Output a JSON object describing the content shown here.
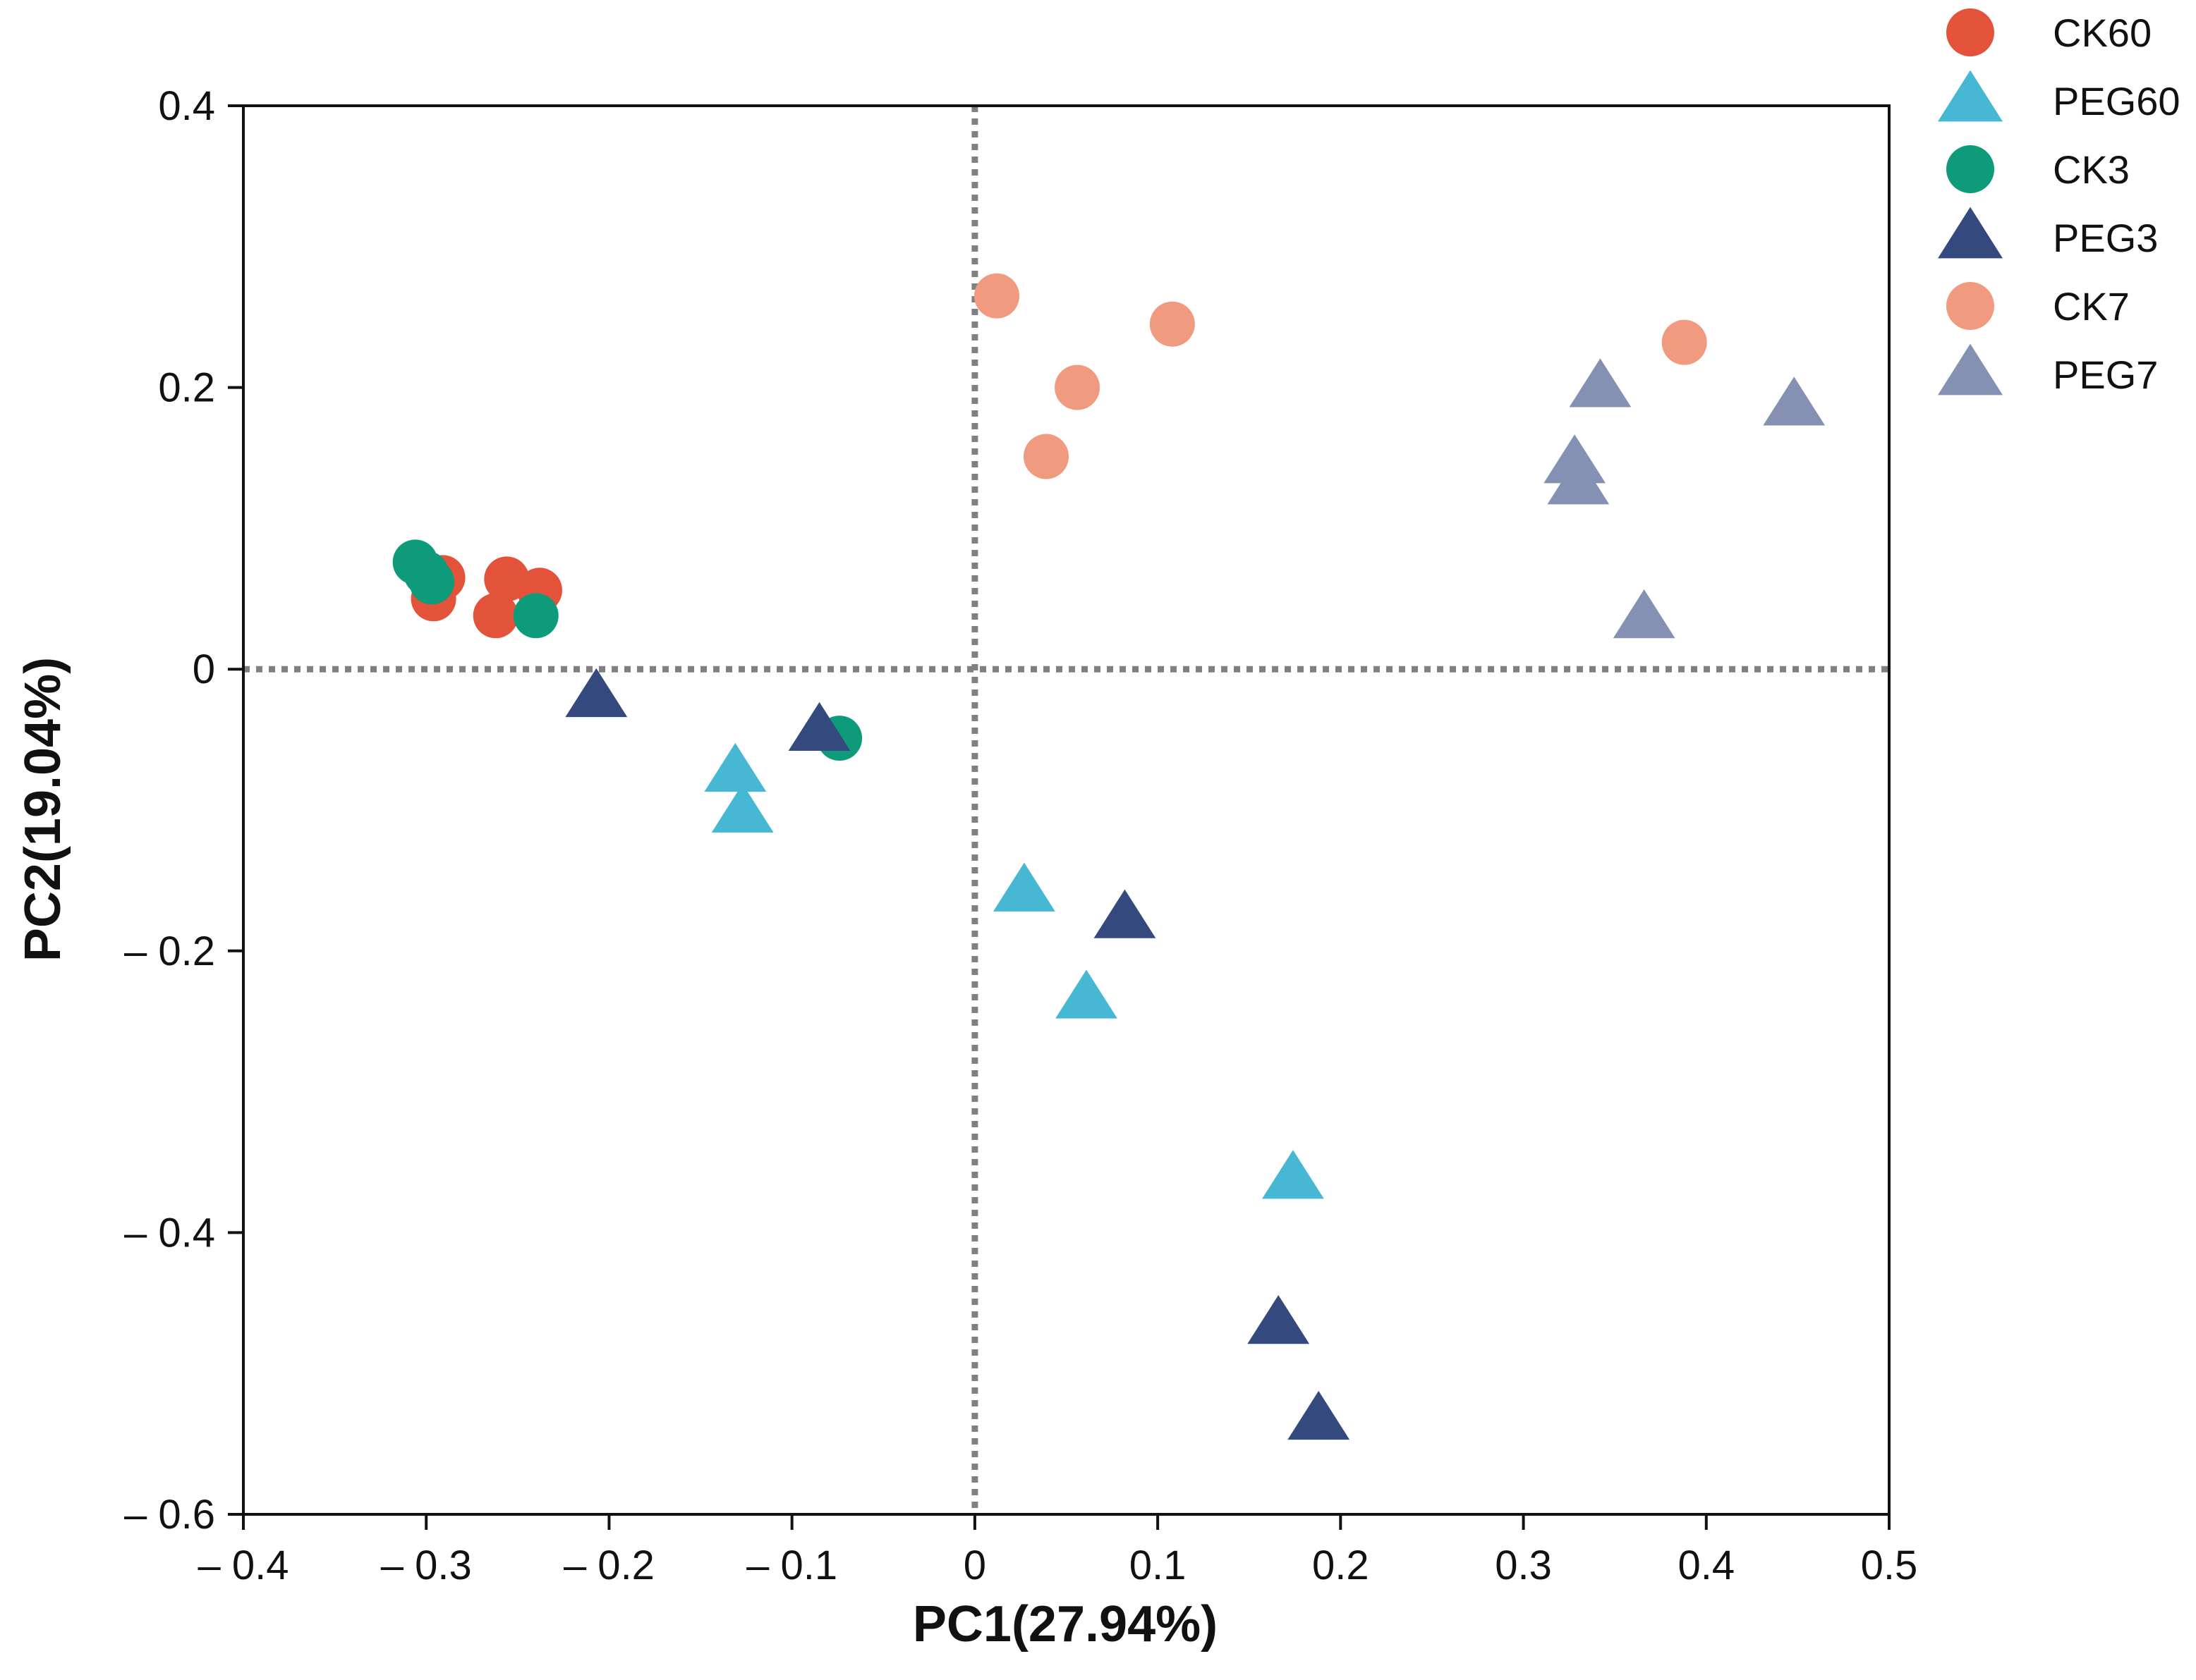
{
  "chart_data": {
    "type": "scatter",
    "title": "",
    "xlabel": "PC1(27.94%)",
    "ylabel": "PC2(19.04%)",
    "xlim": [
      -0.4,
      0.5
    ],
    "ylim": [
      -0.6,
      0.4
    ],
    "xticks": [
      -0.4,
      -0.3,
      -0.2,
      -0.1,
      0,
      0.1,
      0.2,
      0.3,
      0.4,
      0.5
    ],
    "xtick_labels": [
      "– 0.4",
      "– 0.3",
      "– 0.2",
      "– 0.1",
      "0",
      "0.1",
      "0.2",
      "0.3",
      "0.4",
      "0.5"
    ],
    "yticks": [
      0.4,
      0.2,
      0,
      -0.2,
      -0.4,
      -0.6
    ],
    "ytick_labels": [
      "0.4",
      "0.2",
      "0",
      "– 0.2",
      "– 0.4",
      "– 0.6"
    ],
    "reference_lines": {
      "x": 0,
      "y": 0,
      "style": "dotted",
      "color": "#808080"
    },
    "legend_position": "outside top-right",
    "series": [
      {
        "name": "CK60",
        "marker": "circle",
        "color": "#E2533A",
        "points": [
          [
            -0.291,
            0.065
          ],
          [
            -0.296,
            0.05
          ],
          [
            -0.256,
            0.064
          ],
          [
            -0.238,
            0.056
          ],
          [
            -0.262,
            0.038
          ]
        ]
      },
      {
        "name": "PEG60",
        "marker": "triangle",
        "color": "#46B8D4",
        "points": [
          [
            -0.131,
            -0.073
          ],
          [
            -0.127,
            -0.102
          ],
          [
            0.027,
            -0.158
          ],
          [
            0.061,
            -0.234
          ],
          [
            0.174,
            -0.362
          ]
        ]
      },
      {
        "name": "CK3",
        "marker": "circle",
        "color": "#0E9B7A",
        "points": [
          [
            -0.306,
            0.076
          ],
          [
            -0.3,
            0.068
          ],
          [
            -0.297,
            0.062
          ],
          [
            -0.24,
            0.038
          ],
          [
            -0.074,
            -0.049
          ]
        ]
      },
      {
        "name": "PEG3",
        "marker": "triangle",
        "color": "#34497D",
        "points": [
          [
            -0.207,
            -0.02
          ],
          [
            -0.085,
            -0.044
          ],
          [
            0.082,
            -0.177
          ],
          [
            0.166,
            -0.465
          ],
          [
            0.188,
            -0.533
          ]
        ]
      },
      {
        "name": "CK7",
        "marker": "circle",
        "color": "#F09A80",
        "points": [
          [
            0.012,
            0.265
          ],
          [
            0.108,
            0.245
          ],
          [
            0.056,
            0.2
          ],
          [
            0.039,
            0.151
          ],
          [
            0.388,
            0.232
          ]
        ]
      },
      {
        "name": "PEG7",
        "marker": "triangle",
        "color": "#8591B2",
        "points": [
          [
            0.342,
            0.2
          ],
          [
            0.448,
            0.187
          ],
          [
            0.328,
            0.146
          ],
          [
            0.33,
            0.131
          ],
          [
            0.366,
            0.036
          ]
        ]
      }
    ]
  }
}
